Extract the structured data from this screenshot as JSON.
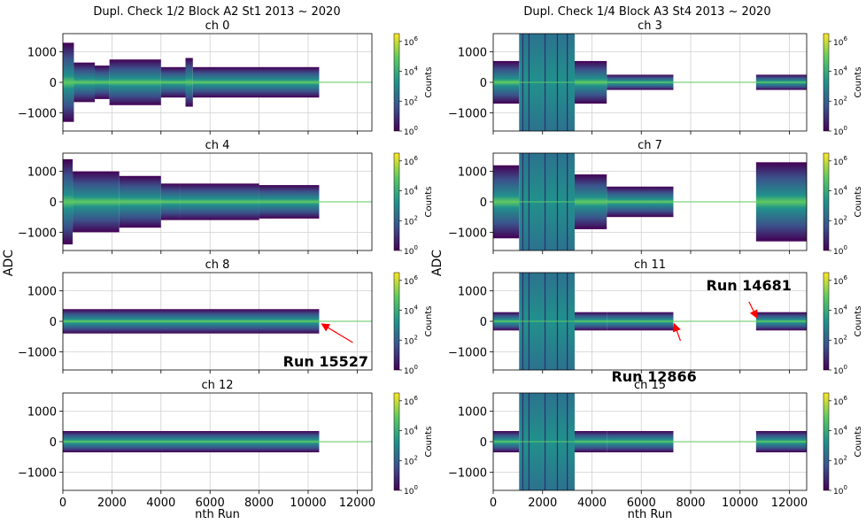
{
  "figure": {
    "ylabel": "ADC",
    "colors": {
      "low": "#440154",
      "mid": "#21918c",
      "high": "#fde725",
      "line": "#5ec962",
      "annot": "#ff0000",
      "grid": "#d0d0d0"
    }
  },
  "chart_data": [
    {
      "type": "heatmap",
      "column_title": "Dupl. Check 1/2 Block A2 St1 2013 ~ 2020",
      "xlabel": "nth Run",
      "ylabel": "ADC",
      "xlim": [
        0,
        12600
      ],
      "ylim": [
        -1600,
        1600
      ],
      "xticks": [
        0,
        2000,
        4000,
        6000,
        8000,
        10000,
        12000
      ],
      "yticks": [
        -1000,
        0,
        1000
      ],
      "colorbar": {
        "label": "Counts",
        "scale": "log",
        "ticks": [
          "10^0",
          "10^2",
          "10^4",
          "10^6"
        ]
      },
      "panels": [
        {
          "title": "ch 0",
          "data_end": 10450,
          "segments": [
            [
              0,
              450,
              1300
            ],
            [
              450,
              1300,
              650
            ],
            [
              1300,
              1900,
              550
            ],
            [
              1900,
              4000,
              750
            ],
            [
              4000,
              5000,
              500
            ],
            [
              5000,
              5300,
              800
            ],
            [
              5300,
              10450,
              500
            ]
          ]
        },
        {
          "title": "ch 4",
          "data_end": 10450,
          "segments": [
            [
              0,
              400,
              1400
            ],
            [
              400,
              2300,
              1000
            ],
            [
              2300,
              4000,
              850
            ],
            [
              4000,
              4800,
              600
            ],
            [
              4800,
              8000,
              600
            ],
            [
              8000,
              10450,
              550
            ]
          ]
        },
        {
          "title": "ch 8",
          "data_end": 10450,
          "segments": [
            [
              0,
              10450,
              400
            ]
          ],
          "annotation": {
            "text": "Run 15527",
            "x": 10450,
            "y": 0
          }
        },
        {
          "title": "ch 12",
          "data_end": 10450,
          "segments": [
            [
              0,
              10450,
              350
            ]
          ]
        }
      ]
    },
    {
      "type": "heatmap",
      "column_title": "Dupl. Check 1/4 Block A3 St4 2013 ~ 2020",
      "xlabel": "nth Run",
      "ylabel": "ADC",
      "xlim": [
        0,
        12700
      ],
      "ylim": [
        -1600,
        1600
      ],
      "xticks": [
        0,
        2000,
        4000,
        6000,
        8000,
        10000,
        12000
      ],
      "yticks": [
        -1000,
        0,
        1000
      ],
      "colorbar": {
        "label": "Counts",
        "scale": "log",
        "ticks": [
          "10^0",
          "10^2",
          "10^4",
          "10^6"
        ]
      },
      "panels": [
        {
          "title": "ch 3",
          "data_end": 12700,
          "segments": [
            [
              0,
              1050,
              700
            ],
            [
              1050,
              3300,
              1600
            ],
            [
              3300,
              4600,
              700
            ],
            [
              4600,
              7300,
              250
            ],
            [
              10650,
              12700,
              250
            ]
          ]
        },
        {
          "title": "ch 7",
          "data_end": 12700,
          "segments": [
            [
              0,
              1050,
              1200
            ],
            [
              1050,
              3300,
              1600
            ],
            [
              3300,
              4600,
              900
            ],
            [
              4600,
              7300,
              500
            ],
            [
              10650,
              12700,
              1300
            ]
          ]
        },
        {
          "title": "ch 11",
          "data_end": 12700,
          "segments": [
            [
              0,
              1050,
              300
            ],
            [
              1050,
              3300,
              1600
            ],
            [
              3300,
              4600,
              300
            ],
            [
              4600,
              7300,
              300
            ],
            [
              10650,
              12700,
              300
            ]
          ],
          "annotations": [
            {
              "text": "Run 12866",
              "x": 7300,
              "y": 0
            },
            {
              "text": "Run 14681",
              "x": 10650,
              "y": 0
            }
          ]
        },
        {
          "title": "ch 15",
          "data_end": 12700,
          "segments": [
            [
              0,
              1050,
              350
            ],
            [
              1050,
              3300,
              1600
            ],
            [
              3300,
              4600,
              350
            ],
            [
              4600,
              7300,
              350
            ],
            [
              10650,
              12700,
              350
            ]
          ]
        }
      ]
    }
  ]
}
